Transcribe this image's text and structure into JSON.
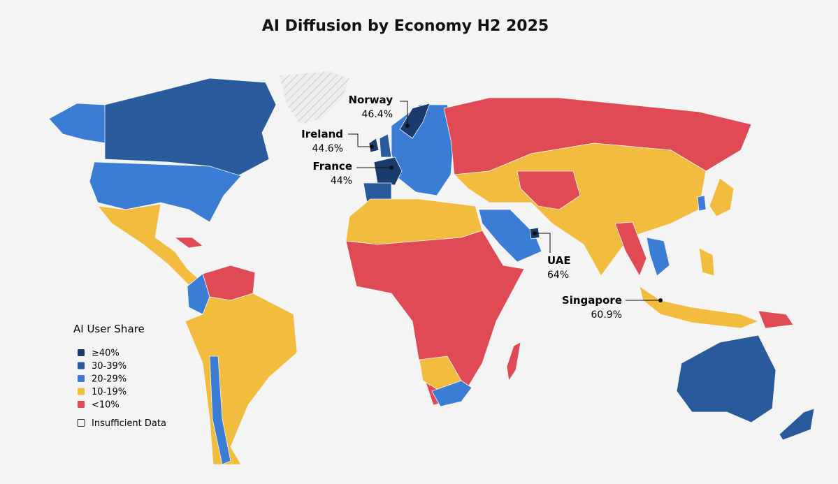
{
  "title": "AI Diffusion by Economy H2 2025",
  "legend": {
    "title": "AI User Share",
    "items": [
      {
        "label": "≥40%",
        "color": "#1b3a6e"
      },
      {
        "label": "30-39%",
        "color": "#285a9c"
      },
      {
        "label": "20-29%",
        "color": "#3b7dd4"
      },
      {
        "label": "10-19%",
        "color": "#f2bc3f"
      },
      {
        "label": "<10%",
        "color": "#e04a55"
      }
    ],
    "insufficient": "Insufficient Data"
  },
  "callouts": [
    {
      "name": "Norway",
      "value": 46.4,
      "value_label": "46.4%"
    },
    {
      "name": "Ireland",
      "value": 44.6,
      "value_label": "44.6%"
    },
    {
      "name": "France",
      "value": 44,
      "value_label": "44%"
    },
    {
      "name": "UAE",
      "value": 64,
      "value_label": "64%"
    },
    {
      "name": "Singapore",
      "value": 60.9,
      "value_label": "60.9%"
    }
  ]
}
